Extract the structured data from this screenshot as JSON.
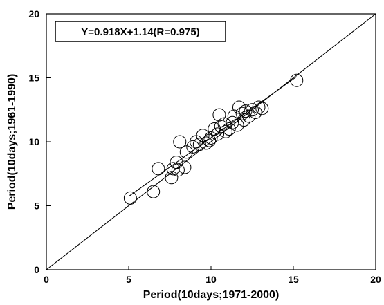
{
  "chart_data": {
    "type": "scatter",
    "xlabel": "Period(10days;1971-2000)",
    "ylabel": "Period(10days;1961-1990)",
    "xlim": [
      0,
      20
    ],
    "ylim": [
      0,
      20
    ],
    "x_ticks": [
      "0",
      "5",
      "10",
      "15",
      "20"
    ],
    "y_ticks": [
      "0",
      "5",
      "10",
      "15",
      "20"
    ],
    "grid": false,
    "marker": "open-circle",
    "annotation": "Y=0.918X+1.14(R=0.975)",
    "lines": [
      {
        "kind": "one-to-one",
        "x": [
          0,
          20
        ],
        "y": [
          0,
          20
        ]
      },
      {
        "kind": "regression",
        "x": [
          5,
          15.2
        ],
        "y": [
          5.73,
          15.09
        ]
      }
    ],
    "points": [
      {
        "x": 5.1,
        "y": 5.6
      },
      {
        "x": 6.5,
        "y": 6.1
      },
      {
        "x": 6.8,
        "y": 7.9
      },
      {
        "x": 7.6,
        "y": 7.2
      },
      {
        "x": 7.7,
        "y": 7.9
      },
      {
        "x": 7.9,
        "y": 8.4
      },
      {
        "x": 8.0,
        "y": 7.8
      },
      {
        "x": 8.1,
        "y": 10.0
      },
      {
        "x": 8.4,
        "y": 8.0
      },
      {
        "x": 8.5,
        "y": 9.2
      },
      {
        "x": 8.9,
        "y": 9.6
      },
      {
        "x": 9.1,
        "y": 10.0
      },
      {
        "x": 9.3,
        "y": 9.8
      },
      {
        "x": 9.5,
        "y": 10.5
      },
      {
        "x": 9.7,
        "y": 9.9
      },
      {
        "x": 9.9,
        "y": 10.1
      },
      {
        "x": 10.0,
        "y": 10.3
      },
      {
        "x": 10.2,
        "y": 11.0
      },
      {
        "x": 10.4,
        "y": 10.6
      },
      {
        "x": 10.5,
        "y": 12.1
      },
      {
        "x": 10.6,
        "y": 11.2
      },
      {
        "x": 10.8,
        "y": 11.4
      },
      {
        "x": 10.9,
        "y": 10.8
      },
      {
        "x": 11.1,
        "y": 11.0
      },
      {
        "x": 11.3,
        "y": 11.5
      },
      {
        "x": 11.4,
        "y": 12.0
      },
      {
        "x": 11.6,
        "y": 11.3
      },
      {
        "x": 11.7,
        "y": 12.7
      },
      {
        "x": 11.9,
        "y": 12.2
      },
      {
        "x": 12.0,
        "y": 11.7
      },
      {
        "x": 12.1,
        "y": 12.4
      },
      {
        "x": 12.3,
        "y": 12.0
      },
      {
        "x": 12.5,
        "y": 12.5
      },
      {
        "x": 12.7,
        "y": 12.3
      },
      {
        "x": 12.9,
        "y": 12.7
      },
      {
        "x": 13.1,
        "y": 12.6
      },
      {
        "x": 15.2,
        "y": 14.8
      }
    ]
  }
}
